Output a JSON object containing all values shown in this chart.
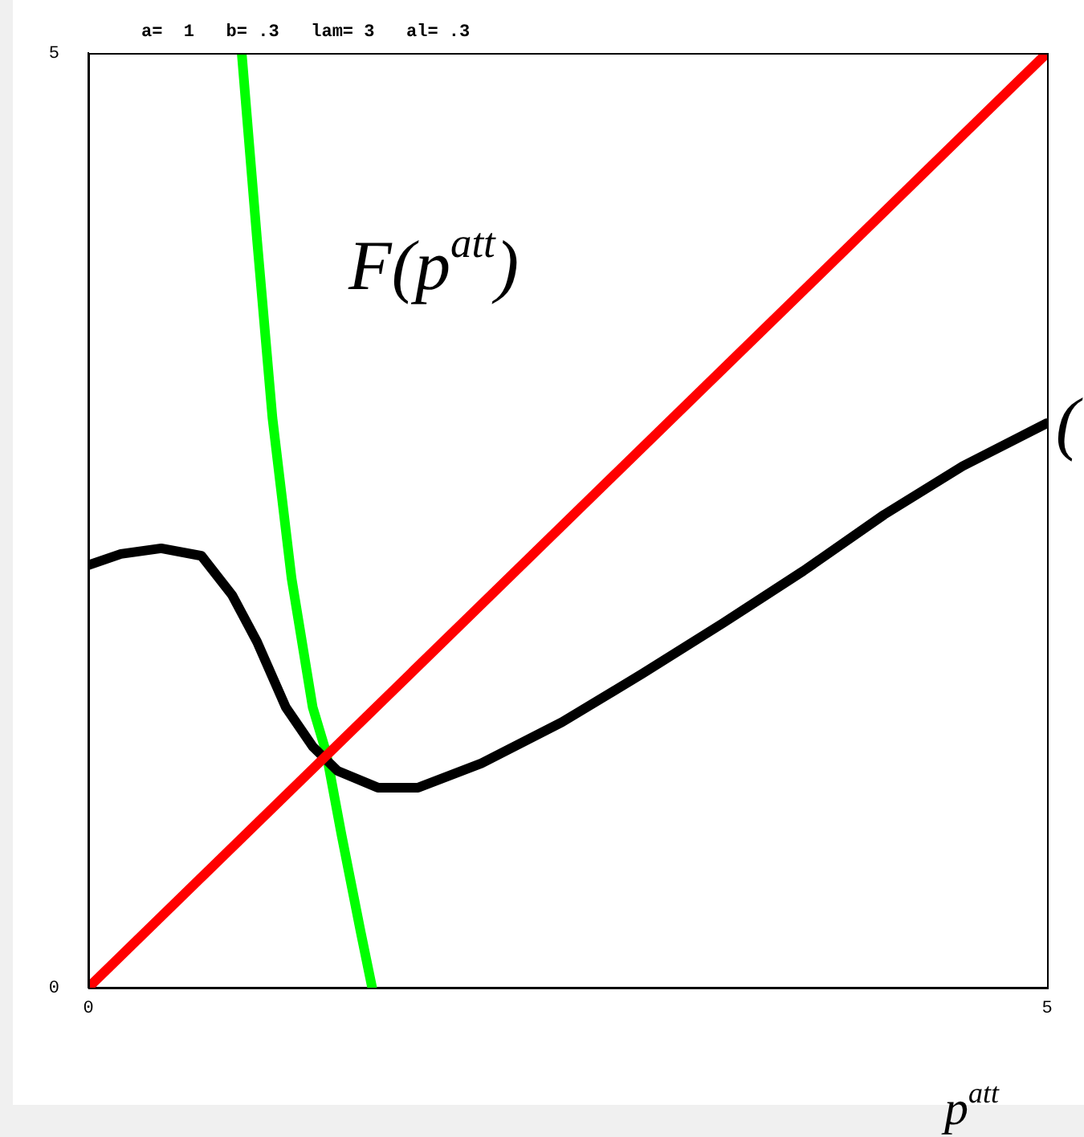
{
  "chart_data": {
    "type": "line",
    "title": "a=  1   b= .3   lam= 3   al= .3",
    "xlabel": "p$^{att}$",
    "annotations": [
      "F(p$^{att}$)",
      "("
    ],
    "xlim": [
      0,
      5
    ],
    "ylim": [
      0,
      5
    ],
    "xticks": [
      0,
      5
    ],
    "yticks": [
      0,
      5
    ],
    "grid": false,
    "legend": false,
    "marker": "none",
    "line_style": "solid",
    "series": [
      {
        "color": "#ff0000",
        "x": [
          0,
          5
        ],
        "values": [
          0,
          5
        ]
      },
      {
        "color": "#000000",
        "x": [
          0,
          0.17,
          0.38,
          0.59,
          0.75,
          0.88,
          1.03,
          1.17,
          1.3,
          1.51,
          1.72,
          2.05,
          2.47,
          2.89,
          3.31,
          3.73,
          4.15,
          4.56,
          5
        ],
        "values": [
          2.26,
          2.32,
          2.35,
          2.31,
          2.1,
          1.85,
          1.5,
          1.29,
          1.16,
          1.07,
          1.07,
          1.2,
          1.42,
          1.68,
          1.95,
          2.23,
          2.53,
          2.79,
          3.02
        ]
      },
      {
        "color": "#00ff00",
        "x": [
          0.8,
          0.88,
          0.96,
          1.06,
          1.17,
          1.24,
          1.32,
          1.42,
          1.48
        ],
        "values": [
          5,
          4,
          3.05,
          2.19,
          1.5,
          1.26,
          0.82,
          0.3,
          0
        ]
      }
    ]
  }
}
